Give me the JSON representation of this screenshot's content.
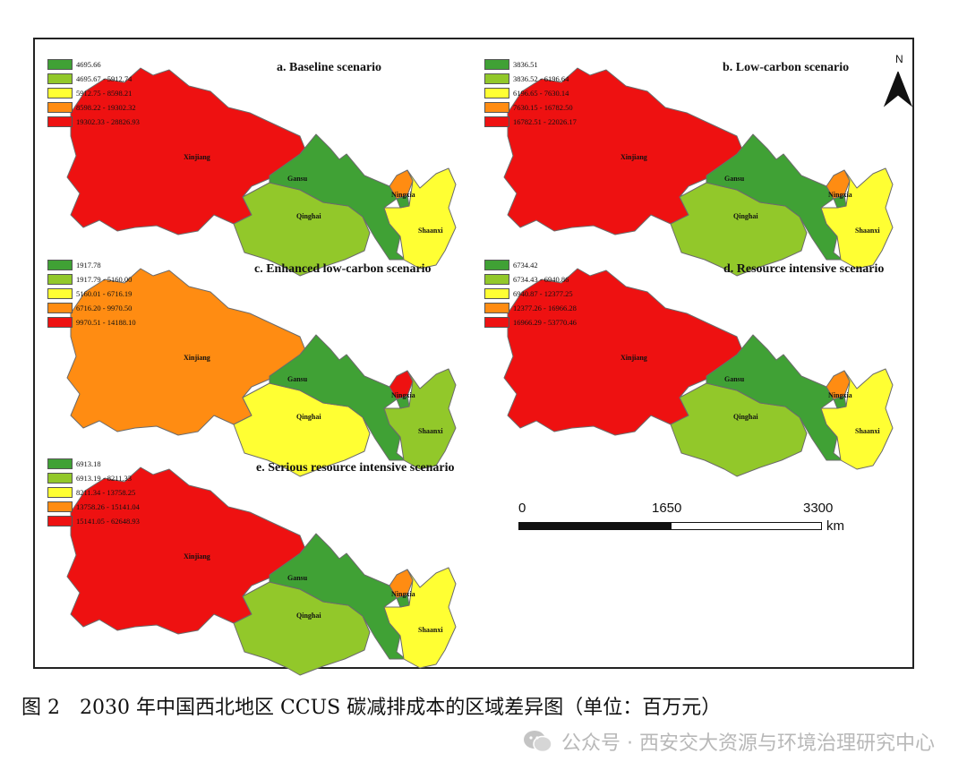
{
  "colors": {
    "dark_green": "#40a135",
    "light_green": "#92c82a",
    "yellow": "#ffff33",
    "orange": "#ff8c12",
    "red": "#ee1111"
  },
  "panels": [
    {
      "title": "a. Baseline scenario",
      "legend": [
        "4695.66",
        "4695.67 - 5912.74",
        "5912.75 - 8598.21",
        "8598.22 - 19302.32",
        "19302.33 - 28826.93"
      ],
      "fills": {
        "xinjiang": "red",
        "gansu": "dark_green",
        "qinghai": "light_green",
        "ningxia": "orange",
        "ningxia_s": "dark_green",
        "shaanxi": "yellow"
      }
    },
    {
      "title": "b. Low-carbon scenario",
      "legend": [
        "3836.51",
        "3836.52 - 6196.64",
        "6196.65 - 7630.14",
        "7630.15 - 16782.50",
        "16782.51 - 22026.17"
      ],
      "fills": {
        "xinjiang": "red",
        "gansu": "dark_green",
        "qinghai": "light_green",
        "ningxia": "orange",
        "ningxia_s": "dark_green",
        "shaanxi": "yellow"
      }
    },
    {
      "title": "c. Enhanced low-carbon scenario",
      "legend": [
        "1917.78",
        "1917.79 - 5160.00",
        "5160.01 - 6716.19",
        "6716.20 - 9970.50",
        "9970.51 - 14188.10"
      ],
      "fills": {
        "xinjiang": "orange",
        "gansu": "dark_green",
        "qinghai": "yellow",
        "ningxia": "red",
        "ningxia_s": "dark_green",
        "shaanxi": "light_green"
      }
    },
    {
      "title": "d. Resource intensive scenario",
      "legend": [
        "6734.42",
        "6734.43 - 6940.86",
        "6940.87 - 12377.25",
        "12377.26 - 16966.28",
        "16966.29 - 53770.46"
      ],
      "fills": {
        "xinjiang": "red",
        "gansu": "dark_green",
        "qinghai": "light_green",
        "ningxia": "orange",
        "ningxia_s": "dark_green",
        "shaanxi": "yellow"
      }
    },
    {
      "title": "e. Serious resource intensive scenario",
      "legend": [
        "6913.18",
        "6913.19 - 8211.33",
        "8211.34 - 13758.25",
        "13758.26 - 15141.04",
        "15141.05 - 62648.93"
      ],
      "fills": {
        "xinjiang": "red",
        "gansu": "dark_green",
        "qinghai": "light_green",
        "ningxia": "orange",
        "ningxia_s": "dark_green",
        "shaanxi": "yellow"
      }
    }
  ],
  "province_names": {
    "xinjiang": "Xinjiang",
    "gansu": "Gansu",
    "qinghai": "Qinghai",
    "ningxia": "Ningxia",
    "shaanxi": "Shaanxi"
  },
  "north_label": "N",
  "scale_bar": {
    "ticks": [
      "0",
      "1650",
      "3300"
    ],
    "unit": "km"
  },
  "caption": "图 2　2030 年中国西北地区 CCUS 碳减排成本的区域差异图（单位：百万元）",
  "watermark": "公众号 · 西安交大资源与环境治理研究中心"
}
